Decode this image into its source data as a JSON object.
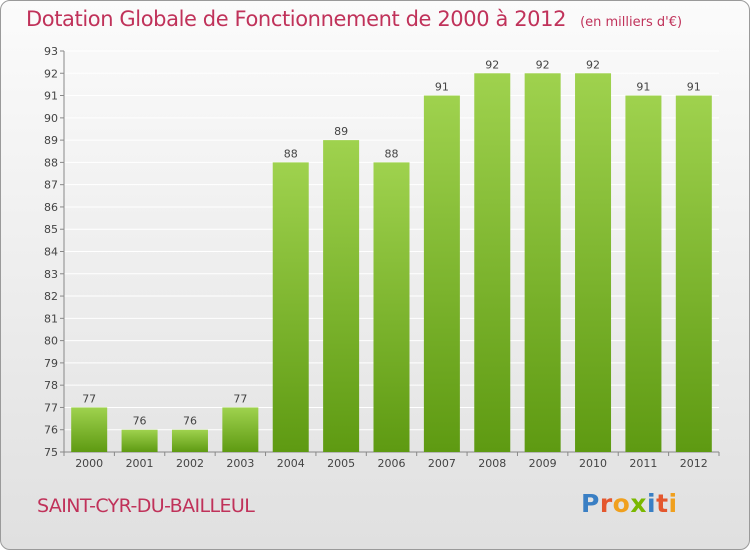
{
  "header": {
    "title": "Dotation Globale de Fonctionnement de 2000 à 2012",
    "unit": "(en milliers d'€)"
  },
  "footer": {
    "commune": "SAINT-CYR-DU-BAILLEUL",
    "logo_letters": [
      "P",
      "r",
      "o",
      "x",
      "i",
      "t",
      "i"
    ],
    "logo_colors": [
      "#3a7fc4",
      "#e4572e",
      "#f0a01e",
      "#7ab800",
      "#3a7fc4",
      "#e4572e",
      "#f0a01e"
    ]
  },
  "chart_data": {
    "type": "bar",
    "categories": [
      "2000",
      "2001",
      "2002",
      "2003",
      "2004",
      "2005",
      "2006",
      "2007",
      "2008",
      "2009",
      "2010",
      "2011",
      "2012"
    ],
    "values": [
      77,
      76,
      76,
      77,
      88,
      89,
      88,
      91,
      92,
      92,
      92,
      91,
      91
    ],
    "ylim": [
      75,
      93
    ],
    "yticks": [
      75,
      76,
      77,
      78,
      79,
      80,
      81,
      82,
      83,
      84,
      85,
      86,
      87,
      88,
      89,
      90,
      91,
      92,
      93
    ],
    "grid": true,
    "bar_color_top": "#9fd24e",
    "bar_color_bottom": "#5e9a12",
    "grid_color": "#ffffff"
  }
}
